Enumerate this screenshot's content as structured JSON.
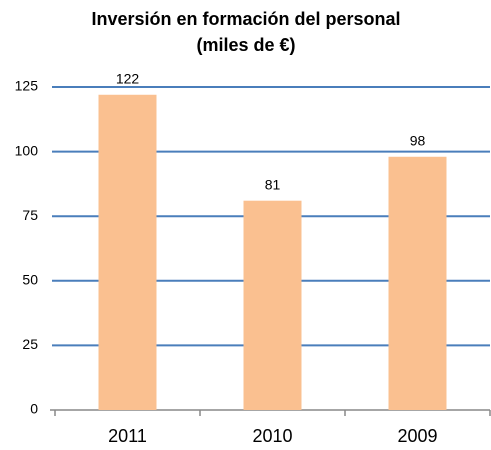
{
  "chart_data": {
    "type": "bar",
    "title": "Inversión en formación del personal",
    "subtitle": "(miles de €)",
    "categories": [
      "2011",
      "2010",
      "2009"
    ],
    "values": [
      122,
      81,
      98
    ],
    "color": "#fac090",
    "ylim": [
      0,
      125
    ],
    "yticks": [
      0,
      25,
      50,
      75,
      100,
      125
    ],
    "grid": true,
    "grid_color": "#4a7ebb"
  }
}
